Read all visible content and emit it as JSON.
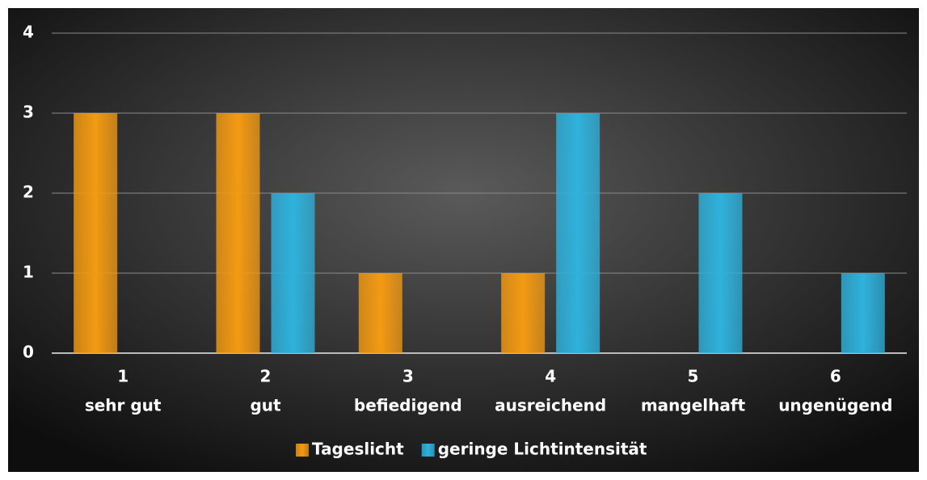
{
  "chart_data": {
    "type": "bar",
    "categories": [
      [
        "1",
        "sehr gut"
      ],
      [
        "2",
        "gut"
      ],
      [
        "3",
        "befiedigend"
      ],
      [
        "4",
        "ausreichend"
      ],
      [
        "5",
        "mangelhaft"
      ],
      [
        "6",
        "ungenügend"
      ]
    ],
    "series": [
      {
        "name": "Tageslicht",
        "color": "#f39a12",
        "values": [
          3,
          3,
          1,
          1,
          0,
          0
        ]
      },
      {
        "name": "geringe Lichtintensität",
        "color": "#2fb2dc",
        "values": [
          0,
          2,
          0,
          3,
          2,
          1
        ]
      }
    ],
    "ylim": [
      0,
      4
    ],
    "yticks": [
      0,
      1,
      2,
      3,
      4
    ],
    "grid": true,
    "legend": "bottom"
  }
}
